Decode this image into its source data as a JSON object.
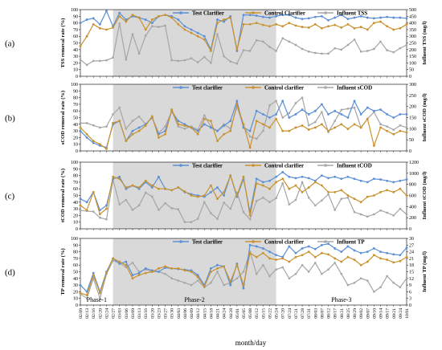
{
  "figure": {
    "xlabel": "month/day",
    "x_dates": [
      "02/09",
      "02/13",
      "02/16",
      "02/20",
      "02/24",
      "02/27",
      "03/03",
      "03/06",
      "03/09",
      "03/13",
      "03/16",
      "03/20",
      "03/23",
      "03/27",
      "03/30",
      "04/03",
      "04/06",
      "04/09",
      "04/12",
      "04/15",
      "04/18",
      "04/21",
      "04/24",
      "04/28",
      "05/01",
      "05/05",
      "05/08",
      "05/12",
      "05/15",
      "05/22",
      "05/24",
      "07/20",
      "07/24",
      "07/21",
      "07/28",
      "07/31",
      "08/03",
      "08/07",
      "08/12",
      "08/17",
      "08/21",
      "08/25",
      "08/29",
      "09/02",
      "09/07",
      "09/10",
      "09/14",
      "09/17",
      "09/21",
      "09/24",
      "10/01"
    ],
    "phases": [
      {
        "label": "Phase-1",
        "from_index": 0,
        "to_index": 5
      },
      {
        "label": "Phase-2",
        "from_index": 5,
        "to_index": 30
      },
      {
        "label": "Phase-3",
        "from_index": 30,
        "to_index": 50
      }
    ],
    "shade_color": "#d9d9d9",
    "colors": {
      "test": "#5b8fd6",
      "control": "#c9922e",
      "influent": "#a6a6a6"
    }
  },
  "chart_data": [
    {
      "panel": "(a)",
      "type": "line",
      "ylabel_left": "TSS removal rate (%)",
      "ylabel_right": "Influent TSS (mg/l)",
      "ylim_left": [
        0,
        100
      ],
      "ylim_right": [
        0,
        500
      ],
      "left_ticks": [
        "0",
        "10",
        "20",
        "30",
        "40",
        "50",
        "60",
        "70",
        "80",
        "90",
        "100"
      ],
      "right_ticks": [
        "0",
        "50",
        "100",
        "150",
        "200",
        "250",
        "300",
        "350",
        "400",
        "450",
        "500"
      ],
      "legend_position": "top",
      "series": [
        {
          "name": "Test Clarifier",
          "axis": "left",
          "color": "#5b8fd6",
          "values": [
            80,
            85,
            87,
            78,
            98,
            75,
            95,
            85,
            90,
            88,
            85,
            80,
            90,
            92,
            90,
            85,
            75,
            70,
            65,
            60,
            40,
            85,
            82,
            90,
            38,
            92,
            92,
            91,
            89,
            88,
            90,
            92,
            92,
            88,
            86,
            87,
            89,
            90,
            84,
            88,
            92,
            86,
            88,
            90,
            88,
            87,
            88,
            89,
            88,
            88,
            87
          ]
        },
        {
          "name": "Control Clarifier",
          "axis": "left",
          "color": "#c9922e",
          "values": [
            45,
            60,
            78,
            72,
            70,
            73,
            90,
            82,
            92,
            88,
            70,
            85,
            90,
            92,
            88,
            78,
            70,
            65,
            60,
            55,
            38,
            80,
            85,
            88,
            40,
            78,
            78,
            80,
            77,
            75,
            78,
            75,
            80,
            76,
            74,
            73,
            78,
            72,
            75,
            77,
            73,
            78,
            72,
            74,
            70,
            80,
            82,
            75,
            70,
            72,
            78
          ]
        },
        {
          "name": "Influent TSS",
          "axis": "right",
          "color": "#a6a6a6",
          "values": [
            125,
            85,
            115,
            115,
            120,
            140,
            395,
            125,
            315,
            170,
            305,
            375,
            370,
            380,
            120,
            115,
            120,
            135,
            105,
            145,
            100,
            315,
            150,
            110,
            95,
            195,
            190,
            270,
            260,
            220,
            190,
            285,
            260,
            235,
            205,
            185,
            175,
            170,
            170,
            210,
            200,
            235,
            275,
            185,
            190,
            205,
            260,
            195,
            180,
            210,
            235
          ]
        }
      ]
    },
    {
      "panel": "(b)",
      "type": "line",
      "ylabel_left": "sCOD removal rate (%)",
      "ylabel_right": "Influent sCOD (mg/l)",
      "ylim_left": [
        0,
        100
      ],
      "ylim_right": [
        0,
        300
      ],
      "left_ticks": [
        "0",
        "10",
        "20",
        "30",
        "40",
        "50",
        "60",
        "70",
        "80",
        "90",
        "100"
      ],
      "right_ticks": [
        "0",
        "50",
        "100",
        "150",
        "200",
        "250",
        "300"
      ],
      "legend_position": "top",
      "series": [
        {
          "name": "Test clarifier",
          "axis": "left",
          "color": "#5b8fd6",
          "values": [
            30,
            20,
            12,
            8,
            5,
            40,
            45,
            15,
            30,
            35,
            40,
            50,
            25,
            30,
            60,
            45,
            40,
            35,
            30,
            40,
            35,
            30,
            38,
            45,
            75,
            35,
            30,
            60,
            55,
            50,
            55,
            75,
            50,
            55,
            62,
            55,
            60,
            70,
            55,
            60,
            55,
            50,
            75,
            55,
            65,
            60,
            62,
            55,
            50,
            55,
            55
          ]
        },
        {
          "name": "Control clarifier",
          "axis": "left",
          "color": "#c9922e",
          "values": [
            35,
            25,
            15,
            10,
            3,
            42,
            45,
            15,
            25,
            30,
            38,
            52,
            20,
            25,
            62,
            40,
            38,
            35,
            25,
            48,
            45,
            15,
            25,
            30,
            70,
            40,
            5,
            45,
            40,
            35,
            48,
            30,
            30,
            35,
            38,
            32,
            35,
            40,
            30,
            35,
            40,
            33,
            40,
            35,
            48,
            8,
            35,
            30,
            25,
            30,
            28
          ]
        },
        {
          "name": "Influent sCOD",
          "axis": "right",
          "color": "#a6a6a6",
          "values": [
            125,
            125,
            115,
            105,
            110,
            165,
            195,
            100,
            135,
            155,
            120,
            150,
            80,
            110,
            180,
            110,
            100,
            110,
            95,
            160,
            110,
            90,
            120,
            100,
            200,
            110,
            65,
            55,
            90,
            205,
            225,
            150,
            170,
            215,
            240,
            115,
            130,
            175,
            85,
            135,
            185,
            190,
            195,
            105,
            145,
            175,
            120,
            110,
            95,
            115,
            105
          ]
        }
      ]
    },
    {
      "panel": "(c)",
      "type": "line",
      "ylabel_left": "tCOD removal rate (%)",
      "ylabel_right": "Influent tCOD (mg/l)",
      "ylim_left": [
        0,
        100
      ],
      "ylim_right": [
        0,
        1200
      ],
      "left_ticks": [
        "0",
        "10",
        "20",
        "30",
        "40",
        "50",
        "60",
        "70",
        "80",
        "90",
        "100"
      ],
      "right_ticks": [
        "0",
        "200",
        "400",
        "600",
        "800",
        "1000",
        "1200"
      ],
      "legend_position": "top",
      "series": [
        {
          "name": "Test clarifier",
          "axis": "left",
          "color": "#5b8fd6",
          "values": [
            45,
            40,
            55,
            28,
            35,
            75,
            78,
            60,
            65,
            60,
            70,
            62,
            78,
            60,
            58,
            62,
            55,
            52,
            50,
            48,
            55,
            62,
            50,
            80,
            48,
            75,
            25,
            75,
            70,
            72,
            78,
            85,
            78,
            76,
            78,
            76,
            72,
            80,
            76,
            78,
            75,
            78,
            75,
            72,
            70,
            75,
            74,
            72,
            70,
            72,
            74
          ]
        },
        {
          "name": "Control clarifier",
          "axis": "left",
          "color": "#c9922e",
          "values": [
            35,
            28,
            55,
            22,
            30,
            78,
            75,
            62,
            65,
            62,
            72,
            65,
            60,
            60,
            58,
            62,
            56,
            50,
            48,
            50,
            65,
            45,
            55,
            80,
            50,
            78,
            20,
            68,
            65,
            60,
            70,
            75,
            60,
            65,
            55,
            62,
            70,
            65,
            55,
            55,
            58,
            50,
            45,
            40,
            48,
            50,
            55,
            58,
            55,
            60,
            50
          ]
        },
        {
          "name": "Influent tCOD",
          "axis": "right",
          "color": "#a6a6a6",
          "values": [
            330,
            320,
            310,
            200,
            170,
            880,
            440,
            520,
            340,
            420,
            650,
            580,
            340,
            460,
            370,
            350,
            120,
            120,
            180,
            480,
            280,
            180,
            470,
            360,
            650,
            300,
            170,
            500,
            560,
            480,
            550,
            820,
            440,
            520,
            840,
            560,
            420,
            510,
            620,
            340,
            540,
            560,
            300,
            260,
            220,
            260,
            330,
            290,
            240,
            360,
            260
          ]
        }
      ]
    },
    {
      "panel": "(d)",
      "type": "line",
      "ylabel_left": "TP removal rate (%)",
      "ylabel_right": "Influent TP (mg/l)",
      "ylim_left": [
        0,
        100
      ],
      "ylim_right": [
        0,
        30
      ],
      "left_ticks": [
        "0",
        "10",
        "20",
        "30",
        "40",
        "50",
        "60",
        "70",
        "80",
        "90",
        "100"
      ],
      "right_ticks": [
        "0",
        "3",
        "6",
        "9",
        "12",
        "15",
        "18",
        "21",
        "24",
        "27",
        "30"
      ],
      "legend_position": "top",
      "series": [
        {
          "name": "Test clarifier",
          "axis": "left",
          "color": "#5b8fd6",
          "values": [
            30,
            20,
            48,
            20,
            50,
            70,
            62,
            65,
            45,
            48,
            55,
            52,
            50,
            56,
            55,
            54,
            53,
            52,
            45,
            30,
            55,
            60,
            58,
            30,
            62,
            25,
            90,
            88,
            85,
            80,
            75,
            72,
            88,
            78,
            85,
            88,
            84,
            90,
            92,
            85,
            80,
            88,
            82,
            78,
            80,
            85,
            80,
            78,
            76,
            75,
            86
          ]
        },
        {
          "name": "Control clarifier",
          "axis": "left",
          "color": "#c9922e",
          "values": [
            18,
            15,
            45,
            18,
            48,
            70,
            65,
            60,
            40,
            45,
            48,
            50,
            55,
            58,
            55,
            55,
            52,
            50,
            42,
            28,
            50,
            55,
            58,
            35,
            60,
            30,
            78,
            72,
            78,
            70,
            68,
            70,
            65,
            72,
            75,
            80,
            72,
            78,
            76,
            70,
            65,
            72,
            68,
            60,
            65,
            75,
            70,
            68,
            64,
            66,
            72
          ]
        },
        {
          "name": "Influent TP",
          "axis": "right",
          "color": "#a6a6a6",
          "values": [
            5,
            3,
            12,
            3,
            14,
            20,
            19,
            17,
            19,
            15,
            16,
            15,
            15,
            14,
            12,
            11,
            10,
            9,
            11,
            8,
            10,
            15,
            9,
            10,
            12,
            15,
            24,
            14,
            18,
            13,
            16,
            17,
            12,
            14,
            18,
            15,
            19,
            14,
            16,
            19,
            14,
            9,
            10,
            12,
            11,
            6,
            8,
            13,
            10,
            8,
            12
          ]
        }
      ]
    }
  ]
}
